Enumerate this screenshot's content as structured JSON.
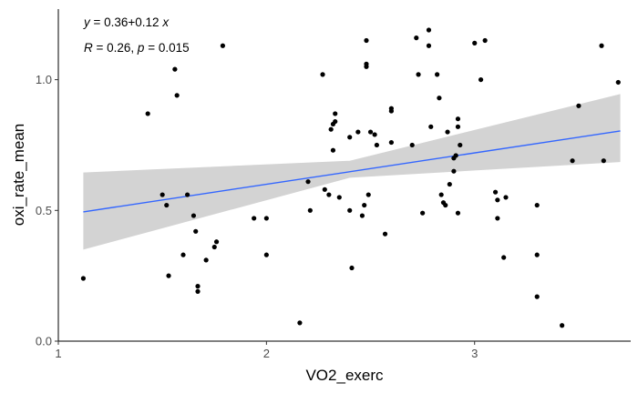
{
  "chart_data": {
    "type": "scatter",
    "xlabel": "VO2_exerc",
    "ylabel": "oxi_rate_mean",
    "xlim": [
      1.0,
      3.75
    ],
    "ylim": [
      0.0,
      1.27
    ],
    "x_ticks": [
      1,
      2,
      3
    ],
    "y_ticks": [
      "0.0",
      "0.5",
      "1.0"
    ],
    "annotations": {
      "equation": {
        "lhs": "y",
        "rhs": " = 0.36+0.12 ",
        "var": "x"
      },
      "stats": {
        "r_label": "R",
        "r_value": " = 0.26, ",
        "p_label": "p",
        "p_value": " = 0.015"
      }
    },
    "fit": {
      "intercept": 0.36,
      "slope": 0.12,
      "x_range": [
        1.12,
        3.7
      ],
      "ci_band": [
        {
          "x": 1.12,
          "lo": 0.35,
          "hi": 0.645
        },
        {
          "x": 2.4,
          "lo": 0.625,
          "hi": 0.69
        },
        {
          "x": 3.7,
          "lo": 0.685,
          "hi": 0.945
        }
      ]
    },
    "grid": false,
    "colors": {
      "line": "#3366ff",
      "band": "#d3d3d3",
      "point": "#000000"
    },
    "points": [
      [
        1.12,
        0.24
      ],
      [
        1.43,
        0.87
      ],
      [
        1.5,
        0.56
      ],
      [
        1.52,
        0.52
      ],
      [
        1.53,
        0.25
      ],
      [
        1.56,
        1.04
      ],
      [
        1.57,
        0.94
      ],
      [
        1.6,
        0.33
      ],
      [
        1.62,
        0.56
      ],
      [
        1.65,
        0.48
      ],
      [
        1.66,
        0.42
      ],
      [
        1.67,
        0.21
      ],
      [
        1.67,
        0.19
      ],
      [
        1.71,
        0.31
      ],
      [
        1.75,
        0.36
      ],
      [
        1.76,
        0.38
      ],
      [
        1.79,
        1.13
      ],
      [
        1.94,
        0.47
      ],
      [
        2.0,
        0.47
      ],
      [
        2.0,
        0.33
      ],
      [
        2.16,
        0.07
      ],
      [
        2.2,
        0.61
      ],
      [
        2.21,
        0.5
      ],
      [
        2.27,
        1.02
      ],
      [
        2.28,
        0.58
      ],
      [
        2.3,
        0.56
      ],
      [
        2.31,
        0.81
      ],
      [
        2.32,
        0.73
      ],
      [
        2.32,
        0.83
      ],
      [
        2.33,
        0.84
      ],
      [
        2.33,
        0.87
      ],
      [
        2.35,
        0.55
      ],
      [
        2.4,
        0.5
      ],
      [
        2.4,
        0.78
      ],
      [
        2.41,
        0.28
      ],
      [
        2.44,
        0.8
      ],
      [
        2.46,
        0.48
      ],
      [
        2.47,
        0.52
      ],
      [
        2.48,
        1.15
      ],
      [
        2.48,
        1.06
      ],
      [
        2.48,
        1.05
      ],
      [
        2.49,
        0.56
      ],
      [
        2.5,
        0.8
      ],
      [
        2.52,
        0.79
      ],
      [
        2.53,
        0.75
      ],
      [
        2.57,
        0.41
      ],
      [
        2.6,
        0.88
      ],
      [
        2.6,
        0.89
      ],
      [
        2.6,
        0.76
      ],
      [
        2.7,
        0.75
      ],
      [
        2.72,
        1.16
      ],
      [
        2.73,
        1.02
      ],
      [
        2.75,
        0.49
      ],
      [
        2.78,
        1.19
      ],
      [
        2.78,
        1.13
      ],
      [
        2.79,
        0.82
      ],
      [
        2.82,
        1.02
      ],
      [
        2.83,
        0.93
      ],
      [
        2.84,
        0.56
      ],
      [
        2.85,
        0.53
      ],
      [
        2.86,
        0.52
      ],
      [
        2.87,
        0.8
      ],
      [
        2.88,
        0.6
      ],
      [
        2.9,
        0.7
      ],
      [
        2.9,
        0.65
      ],
      [
        2.91,
        0.71
      ],
      [
        2.92,
        0.82
      ],
      [
        2.92,
        0.85
      ],
      [
        2.92,
        0.49
      ],
      [
        2.93,
        0.75
      ],
      [
        3.0,
        1.14
      ],
      [
        3.03,
        1.0
      ],
      [
        3.05,
        1.15
      ],
      [
        3.1,
        0.57
      ],
      [
        3.11,
        0.47
      ],
      [
        3.11,
        0.54
      ],
      [
        3.14,
        0.32
      ],
      [
        3.15,
        0.55
      ],
      [
        3.3,
        0.52
      ],
      [
        3.3,
        0.33
      ],
      [
        3.3,
        0.17
      ],
      [
        3.42,
        0.06
      ],
      [
        3.47,
        0.69
      ],
      [
        3.5,
        0.9
      ],
      [
        3.61,
        1.13
      ],
      [
        3.62,
        0.69
      ],
      [
        3.69,
        0.99
      ]
    ]
  }
}
